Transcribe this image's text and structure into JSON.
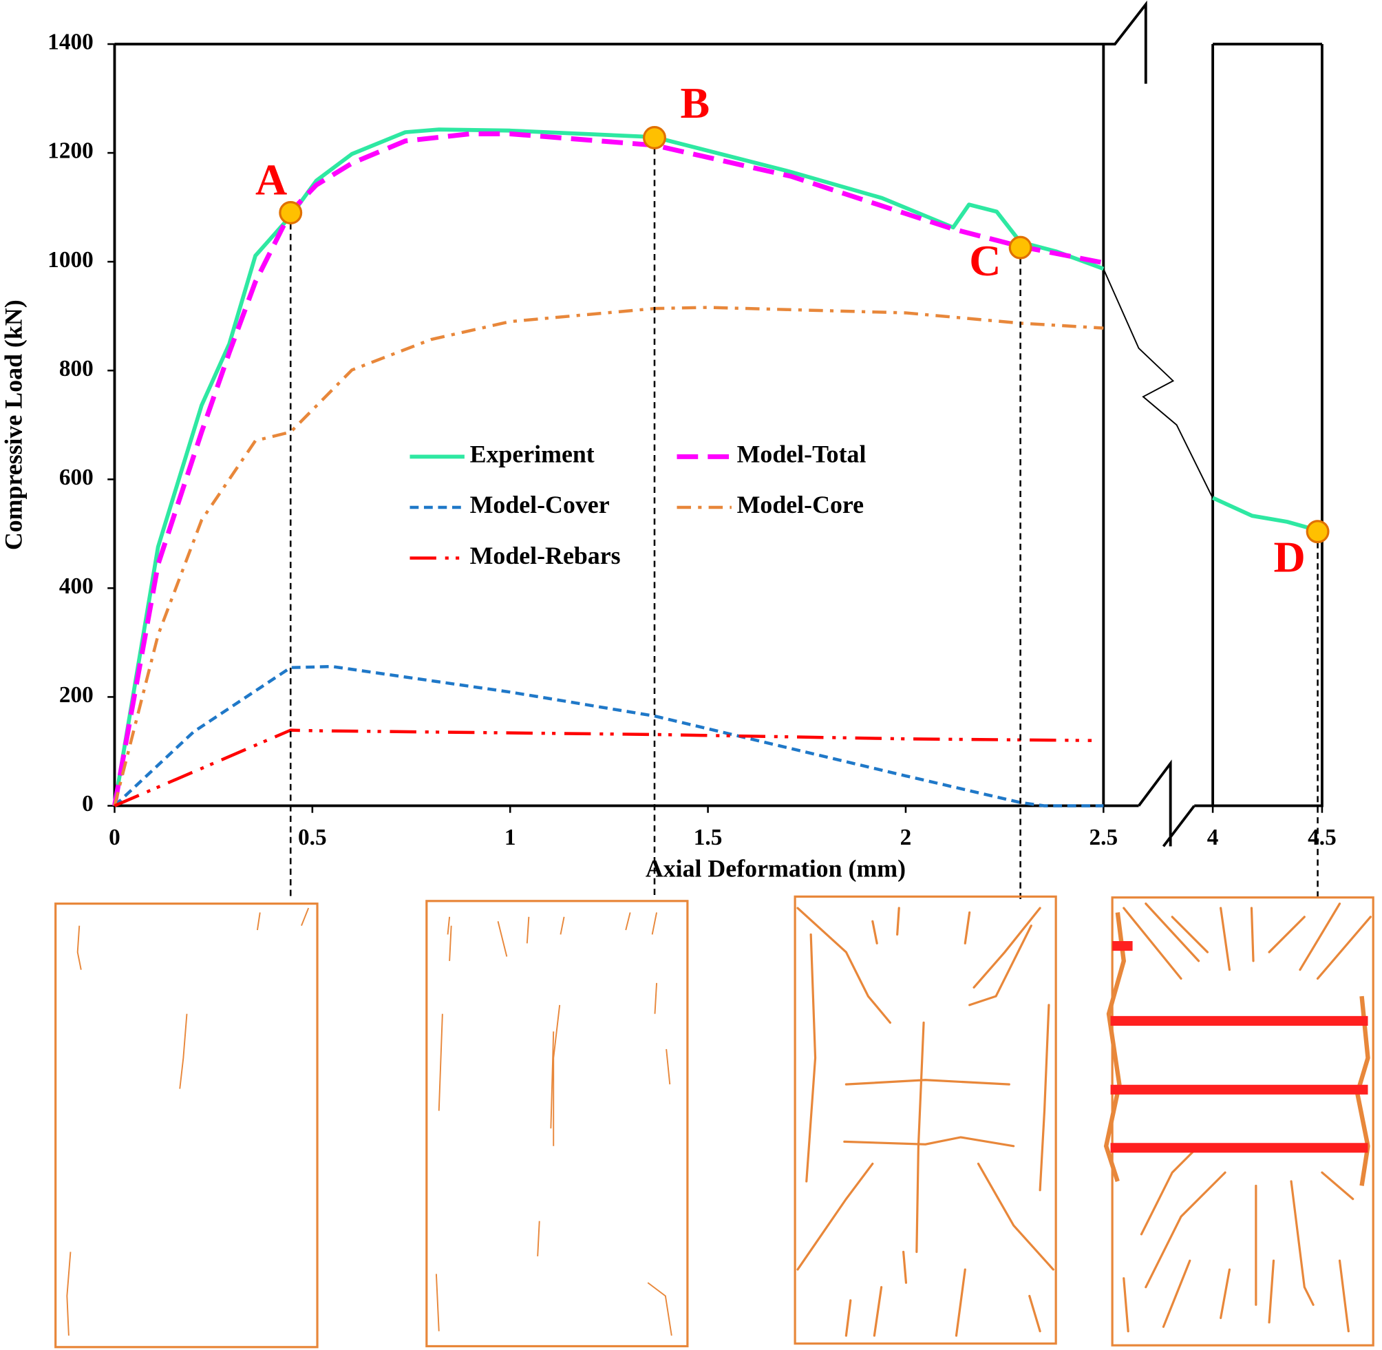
{
  "chart_data": {
    "type": "line",
    "x_label": "Axial Deformation (mm)",
    "y_label": "Compressive Load (kN)",
    "xlim": [
      0,
      4.5
    ],
    "x_break": [
      2.5,
      4
    ],
    "xticks": [
      0,
      0.5,
      1,
      1.5,
      2,
      2.5,
      4,
      4.5
    ],
    "ylim": [
      0,
      1400
    ],
    "yticks": [
      0,
      200,
      400,
      600,
      800,
      1000,
      1200,
      1400
    ],
    "legend": "center",
    "series": [
      {
        "name": "Experiment",
        "color": "#2ee8a2",
        "style": "solid",
        "x": [
          0,
          0.11,
          0.22,
          0.29,
          0.356,
          0.445,
          0.51,
          0.6,
          0.735,
          0.82,
          1.0,
          1.365,
          1.71,
          1.94,
          2.12,
          2.16,
          2.23,
          2.29,
          2.38,
          2.5,
          4,
          4.18,
          4.34,
          4.5
        ],
        "values": [
          0,
          476,
          736,
          849,
          1011,
          1084,
          1149,
          1198,
          1238,
          1243,
          1241,
          1229,
          1165,
          1117,
          1063,
          1105,
          1092,
          1036,
          1019,
          987,
          566,
          533,
          522,
          504
        ]
      },
      {
        "name": "Model-Total",
        "color": "#ff00ff",
        "style": "dashed",
        "x": [
          0,
          0.11,
          0.22,
          0.29,
          0.356,
          0.445,
          0.51,
          0.6,
          0.735,
          0.9,
          1.0,
          1.365,
          1.71,
          2.12,
          2.29,
          2.5
        ],
        "values": [
          0,
          444,
          687,
          833,
          963,
          1092,
          1141,
          1181,
          1222,
          1235,
          1235,
          1214,
          1157,
          1060,
          1028,
          998
        ]
      },
      {
        "name": "Model-Cover",
        "color": "#1f78c8",
        "style": "dotted",
        "x": [
          0,
          0.2,
          0.445,
          0.55,
          1.0,
          1.365,
          2.0,
          2.29,
          2.35,
          2.5
        ],
        "values": [
          0,
          136,
          254,
          256,
          209,
          165,
          55,
          6,
          0,
          0
        ]
      },
      {
        "name": "Model-Core",
        "color": "#e8873a",
        "style": "dashdot",
        "x": [
          0,
          0.11,
          0.22,
          0.356,
          0.445,
          0.6,
          0.8,
          1.0,
          1.365,
          1.5,
          2.0,
          2.29,
          2.5
        ],
        "values": [
          0,
          314,
          525,
          671,
          687,
          801,
          857,
          890,
          914,
          916,
          906,
          887,
          878
        ]
      },
      {
        "name": "Model-Rebars",
        "color": "#ff0000",
        "style": "dashdotdot",
        "x": [
          0,
          0.445,
          0.5,
          1.365,
          2.0,
          2.47
        ],
        "values": [
          0,
          139,
          138,
          131,
          123,
          120
        ]
      }
    ],
    "points": [
      {
        "label": "A",
        "x": 0.445,
        "y": 1090
      },
      {
        "label": "B",
        "x": 1.365,
        "y": 1228
      },
      {
        "label": "C",
        "x": 2.29,
        "y": 1026
      },
      {
        "label": "D",
        "x": 4.48,
        "y": 504
      }
    ],
    "point_color": "#ffc000",
    "label_color": "#ff0000"
  }
}
